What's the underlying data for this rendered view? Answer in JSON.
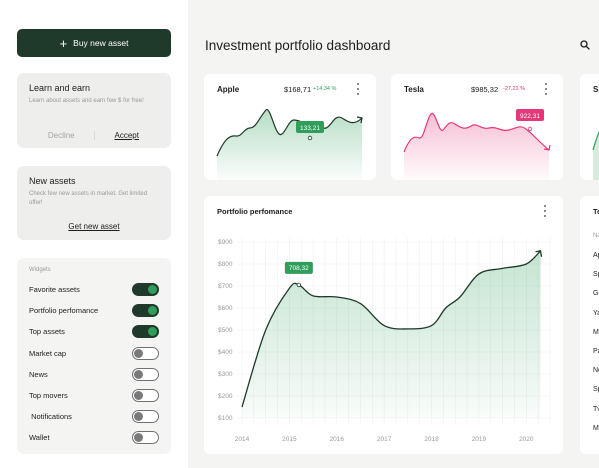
{
  "sidebar": {
    "buy_button": "Buy new asset",
    "learn": {
      "title": "Learn and earn",
      "desc": "Learn about assets and earn few $ for free!",
      "decline": "Decline",
      "accept": "Accept"
    },
    "new_assets": {
      "title": "New assets",
      "desc": "Check few new assets in market. Get limited offer!",
      "link": "Get new asset"
    },
    "widgets": {
      "title": "Widgets",
      "items": [
        {
          "label": "Favorite assets",
          "on": true
        },
        {
          "label": "Portfolio perfomance",
          "on": true
        },
        {
          "label": "Top assets",
          "on": true
        },
        {
          "label": "Market cap",
          "on": false
        },
        {
          "label": "News",
          "on": false
        },
        {
          "label": "Top movers",
          "on": false
        },
        {
          "label": " Notifications",
          "on": false
        },
        {
          "label": "Wallet",
          "on": false
        }
      ]
    }
  },
  "header": {
    "title": "Investment portfolio dashboard",
    "search_icon": "search-icon"
  },
  "stocks": [
    {
      "name": "Apple",
      "price": "$168,71",
      "change": "+14,34 %",
      "trend": "up",
      "color": "#2f9e5b",
      "tooltip": "133,21"
    },
    {
      "name": "Tesla",
      "price": "$985,32",
      "change": "-27,21 %",
      "trend": "down",
      "color": "#e6377a",
      "tooltip": "922,31"
    },
    {
      "name": "Sp"
    }
  ],
  "performance": {
    "title": "Portfolio perfomance",
    "tooltip": "708,32"
  },
  "top_assets": {
    "title": "To",
    "header": "Na",
    "items": [
      "Ap",
      "Sp",
      "Gc",
      "Ya",
      "Mi",
      "Pa",
      "Ne",
      "Sp",
      "Tv",
      "Mi"
    ]
  },
  "chart_data": {
    "type": "area",
    "title": "Portfolio perfomance",
    "x": [
      2014,
      2014.5,
      2015,
      2015.2,
      2015.5,
      2016,
      2016.5,
      2017,
      2017.5,
      2018,
      2018.3,
      2018.6,
      2019,
      2019.5,
      2020,
      2020.3
    ],
    "values": [
      150,
      500,
      690,
      705,
      655,
      650,
      620,
      520,
      505,
      520,
      600,
      650,
      755,
      780,
      800,
      860
    ],
    "y_ticks": [
      "$900",
      "$800",
      "$700",
      "$600",
      "$500",
      "$400",
      "$300",
      "$200",
      "$100"
    ],
    "x_ticks": [
      "2014",
      "2015",
      "2016",
      "2017",
      "2018",
      "2019",
      "2020"
    ],
    "ylim": [
      100,
      900
    ],
    "xlim": [
      2014,
      2020.5
    ],
    "grid": true,
    "line_color": "#1d3a27",
    "fill_color": "#2f9e5b",
    "annotation": {
      "x": 2015.2,
      "label": "708,32"
    }
  }
}
